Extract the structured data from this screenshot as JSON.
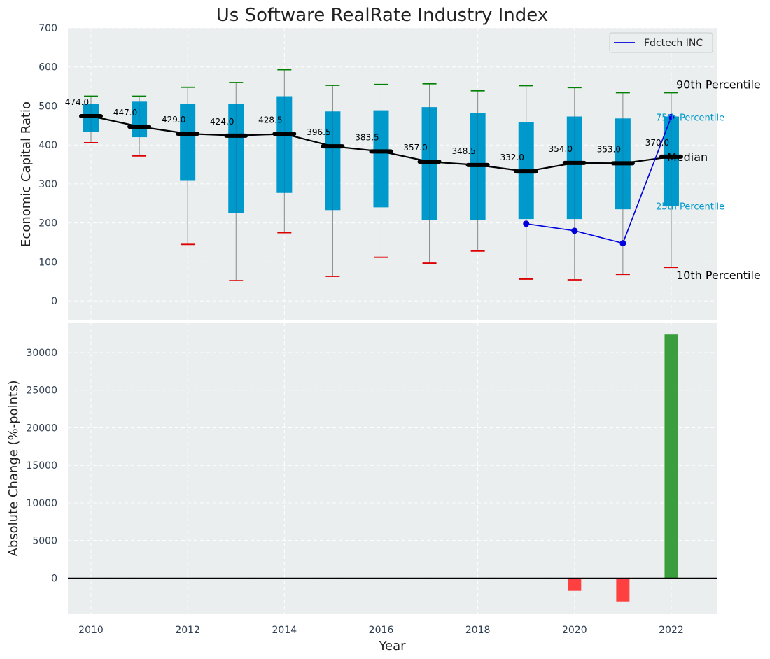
{
  "chart_data": [
    {
      "type": "box",
      "title": "Us Software RealRate Industry Index",
      "ylabel": "Economic Capital Ratio",
      "ylim": [
        -50,
        700
      ],
      "yticks": [
        0,
        100,
        200,
        300,
        400,
        500,
        600,
        700
      ],
      "years": [
        2010,
        2011,
        2012,
        2013,
        2014,
        2015,
        2016,
        2017,
        2018,
        2019,
        2020,
        2021,
        2022
      ],
      "p10": [
        406,
        372,
        145,
        52,
        175,
        63,
        112,
        97,
        128,
        56,
        54,
        68,
        86
      ],
      "p25": [
        433,
        420,
        308,
        225,
        277,
        233,
        240,
        208,
        208,
        210,
        210,
        235,
        243
      ],
      "median": [
        474.0,
        447.0,
        429.0,
        424.0,
        428.5,
        396.5,
        383.5,
        357.0,
        348.5,
        332.0,
        354.0,
        353.0,
        370.0
      ],
      "p75": [
        505,
        511,
        506,
        506,
        525,
        486,
        489,
        497,
        482,
        459,
        473,
        468,
        473
      ],
      "p90": [
        525,
        525,
        548,
        560,
        593,
        553,
        555,
        557,
        539,
        552,
        547,
        534,
        534
      ],
      "median_labels": [
        "474.0",
        "447.0",
        "429.0",
        "424.0",
        "428.5",
        "396.5",
        "383.5",
        "357.0",
        "348.5",
        "332.0",
        "354.0",
        "353.0",
        "370.0"
      ],
      "company_series": {
        "name": "Fdctech INC",
        "x": [
          2019,
          2020,
          2021,
          2022
        ],
        "values": [
          198,
          180,
          148,
          472
        ]
      },
      "annotations": {
        "p90": "90th Percentile",
        "p75": "75th Percentile",
        "median": "Median",
        "p25": "25th Percentile",
        "p10": "10th Percentile"
      },
      "legend": {
        "label": "Fdctech INC",
        "placement": "top-right"
      },
      "grid": true
    },
    {
      "type": "bar",
      "xlabel": "Year",
      "ylabel": "Absolute Change (%-points)",
      "ylim": [
        -4800,
        34000
      ],
      "yticks": [
        0,
        5000,
        10000,
        15000,
        20000,
        25000,
        30000
      ],
      "xticks": [
        2010,
        2012,
        2014,
        2016,
        2018,
        2020,
        2022
      ],
      "x": [
        2020,
        2021,
        2022
      ],
      "values": [
        -1700,
        -3100,
        32400
      ],
      "positive_color": "#3a9e3f",
      "negative_color": "#ff4040",
      "grid": true
    }
  ],
  "colors": {
    "box": "#0099cc",
    "median_line": "#000000",
    "p90_cap": "#008000",
    "p10_cap": "#dd0000",
    "company": "#0000dd",
    "whisker": "#888888",
    "background": "#eaeeee"
  },
  "header": {
    "title": "Us Software RealRate Industry Index"
  }
}
